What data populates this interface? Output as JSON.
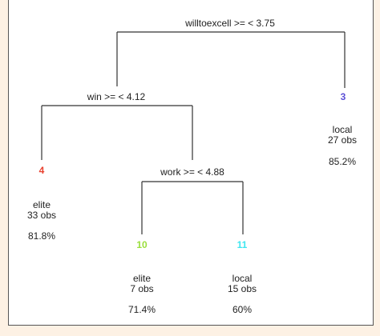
{
  "splits": {
    "root": "willtoexcell >= < 3.75",
    "win": "win >= < 4.12",
    "work": "work >= < 4.88"
  },
  "leaves": {
    "n3": {
      "id": "3",
      "color": "#5b4fd6",
      "class": "local",
      "obs": "27 obs",
      "pct": "85.2%"
    },
    "n4": {
      "id": "4",
      "color": "#e8402e",
      "class": "elite",
      "obs": "33 obs",
      "pct": "81.8%"
    },
    "n10": {
      "id": "10",
      "color": "#9adf3c",
      "class": "elite",
      "obs": "7 obs",
      "pct": "71.4%"
    },
    "n11": {
      "id": "11",
      "color": "#3fe6f0",
      "class": "local",
      "obs": "15 obs",
      "pct": "60%"
    }
  }
}
